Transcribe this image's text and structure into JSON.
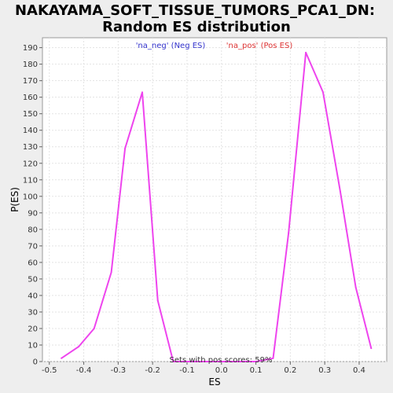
{
  "chart_data": {
    "type": "line",
    "title": [
      "NAKAYAMA_SOFT_TISSUE_TUMORS_PCA1_DN:",
      "Random ES distribution"
    ],
    "xlabel": "ES",
    "ylabel": "P(ES)",
    "xlim": [
      -0.52,
      0.48
    ],
    "ylim": [
      0,
      196
    ],
    "xticks": [
      -0.5,
      -0.4,
      -0.3,
      -0.2,
      -0.1,
      0.0,
      0.1,
      0.2,
      0.3,
      0.4
    ],
    "xtick_labels": [
      "-0.5",
      "-0.4",
      "-0.3",
      "-0.2",
      "-0.1",
      "0.0",
      "0.1",
      "0.2",
      "0.3",
      "0.4"
    ],
    "yticks": [
      0,
      10,
      20,
      30,
      40,
      50,
      60,
      70,
      80,
      90,
      100,
      110,
      120,
      130,
      140,
      150,
      160,
      170,
      180,
      190
    ],
    "grid": true,
    "legend": [
      {
        "label": "'na_neg' (Neg ES)",
        "color": "#3333cc"
      },
      {
        "label": "'na_pos' (Pos ES)",
        "color": "#dd3333"
      }
    ],
    "annotation": "Sets with pos scores: 59%",
    "series": [
      {
        "color": "#ee44ee",
        "x": [
          -0.465,
          -0.415,
          -0.37,
          -0.32,
          -0.28,
          -0.23,
          -0.185,
          -0.14,
          -0.09,
          -0.04,
          0.0,
          0.05,
          0.1,
          0.15,
          0.195,
          0.245,
          0.295,
          0.345,
          0.39,
          0.435
        ],
        "y": [
          2,
          9,
          20,
          54,
          129,
          163,
          37,
          0,
          0,
          0,
          0,
          0,
          0,
          2,
          78,
          187,
          163,
          103,
          45,
          8
        ]
      }
    ]
  }
}
